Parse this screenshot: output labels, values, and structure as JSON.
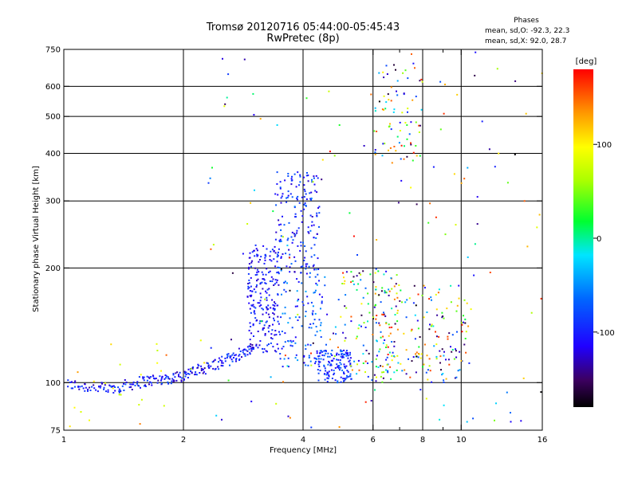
{
  "chart_data": {
    "type": "scatter",
    "title": "Tromsø 20120716 05:44:00-05:45:43",
    "subtitle": "RwPretec (8p)",
    "xlabel": "Frequency [MHz]",
    "ylabel": "Stationary phase Virtual Height [km]",
    "x_scale": "log",
    "y_scale": "log",
    "xlim": [
      1,
      16
    ],
    "ylim": [
      75,
      750
    ],
    "x_ticks": [
      1,
      2,
      4,
      6,
      8,
      10,
      16
    ],
    "x_minor_ticks": [
      7,
      9
    ],
    "y_ticks": [
      75,
      100,
      200,
      300,
      400,
      500,
      600,
      750
    ],
    "grid_x": [
      2,
      4,
      6,
      8,
      10
    ],
    "grid_y": [
      100,
      200,
      300,
      400,
      500,
      600
    ],
    "stats": {
      "header": "Phases",
      "line_o": "mean, sd,O: -92.3, 22.3",
      "line_x": "mean, sd,X:  92.0, 28.7"
    },
    "colorbar": {
      "label": "[deg]",
      "range": [
        -180,
        180
      ],
      "ticks": [
        100,
        0,
        -100
      ]
    },
    "trace_segments": [
      {
        "x": [
          1.02,
          1.3
        ],
        "y": [
          99,
          96
        ]
      },
      {
        "x": [
          1.3,
          1.6
        ],
        "y": [
          96,
          101
        ]
      },
      {
        "x": [
          1.6,
          1.9
        ],
        "y": [
          101,
          103
        ]
      },
      {
        "x": [
          1.9,
          2.2
        ],
        "y": [
          103,
          108
        ]
      },
      {
        "x": [
          2.2,
          2.6
        ],
        "y": [
          108,
          115
        ]
      },
      {
        "x": [
          2.6,
          3.0
        ],
        "y": [
          115,
          124
        ]
      }
    ],
    "clusters": [
      {
        "x": [
          2.9,
          3.5
        ],
        "y": [
          120,
          230
        ],
        "n": 220,
        "phase": [
          -130,
          -80
        ]
      },
      {
        "x": [
          3.4,
          4.4
        ],
        "y": [
          200,
          360
        ],
        "n": 160,
        "phase": [
          -130,
          -60
        ]
      },
      {
        "x": [
          3.5,
          4.6
        ],
        "y": [
          110,
          200
        ],
        "n": 120,
        "phase": [
          -120,
          -40
        ]
      },
      {
        "x": [
          4.3,
          5.3
        ],
        "y": [
          100,
          122
        ],
        "n": 140,
        "phase": [
          -120,
          -60
        ]
      },
      {
        "x": [
          4.8,
          7.0
        ],
        "y": [
          100,
          200
        ],
        "n": 120,
        "phase": [
          -160,
          160
        ]
      },
      {
        "x": [
          6.0,
          10.5
        ],
        "y": [
          100,
          180
        ],
        "n": 180,
        "phase": [
          -180,
          180
        ]
      },
      {
        "x": [
          6.0,
          8.0
        ],
        "y": [
          380,
          690
        ],
        "n": 80,
        "phase": [
          -180,
          180
        ]
      },
      {
        "x": [
          2.3,
          16.0
        ],
        "y": [
          75,
          750
        ],
        "n": 150,
        "phase": [
          -180,
          180
        ]
      },
      {
        "x": [
          1.0,
          2.3
        ],
        "y": [
          76,
          130
        ],
        "n": 25,
        "phase": [
          60,
          150
        ]
      }
    ]
  }
}
